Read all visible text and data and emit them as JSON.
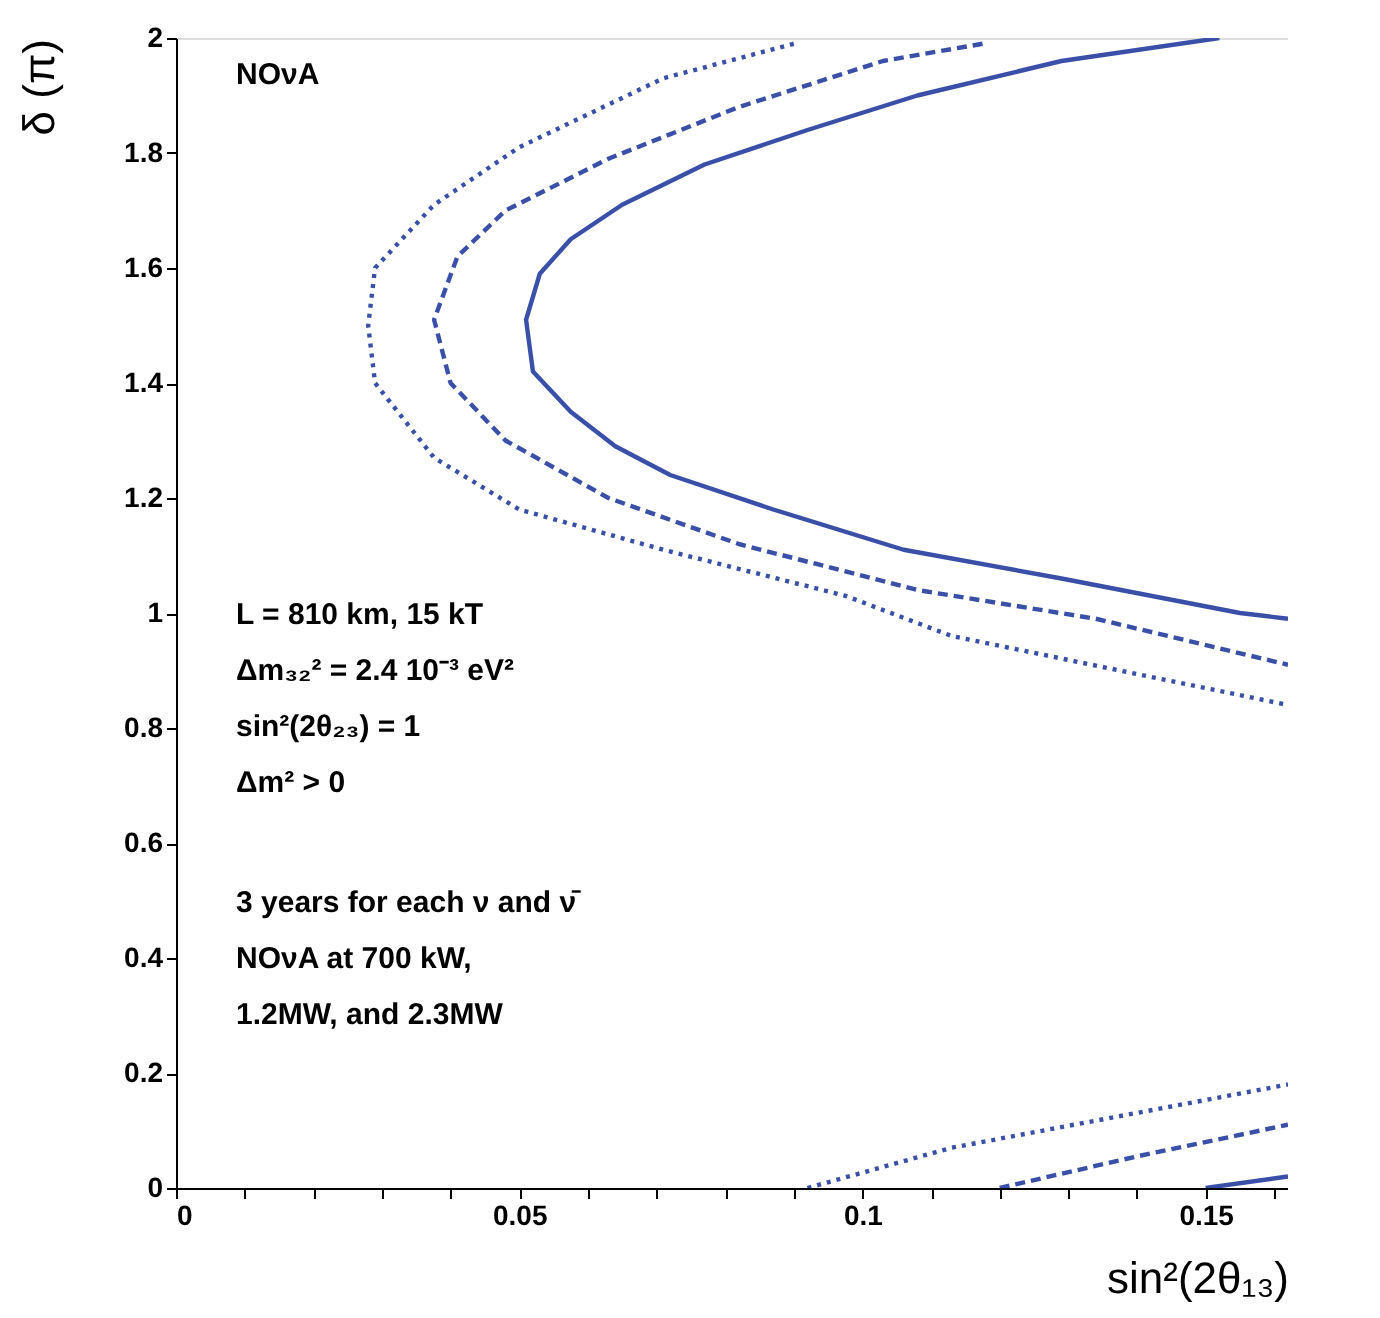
{
  "chart_data": {
    "type": "line",
    "xlabel": "sin²(2θ₁₃)",
    "ylabel": "δ (π)",
    "xlim": [
      0,
      0.162
    ],
    "ylim": [
      0,
      2
    ],
    "xticks": [
      0,
      {
        "value": 0.01,
        "label": null
      },
      {
        "value": 0.02,
        "label": null
      },
      {
        "value": 0.03,
        "label": null
      },
      {
        "value": 0.04,
        "label": null
      },
      0.05,
      {
        "value": 0.06,
        "label": null
      },
      {
        "value": 0.07,
        "label": null
      },
      {
        "value": 0.08,
        "label": null
      },
      {
        "value": 0.09,
        "label": null
      },
      0.1,
      {
        "value": 0.11,
        "label": null
      },
      {
        "value": 0.12,
        "label": null
      },
      {
        "value": 0.13,
        "label": null
      },
      {
        "value": 0.14,
        "label": null
      },
      0.15,
      {
        "value": 0.16,
        "label": null
      }
    ],
    "yticks": [
      0,
      0.2,
      0.4,
      0.6,
      0.8,
      1,
      1.2,
      1.4,
      1.6,
      1.8,
      2
    ],
    "grid": false,
    "marker": "none",
    "series": [
      {
        "color": "#3a4fa8",
        "line_style": "solid",
        "x": [
          0.152,
          0.129,
          0.108,
          0.092,
          0.077,
          0.065,
          0.0575,
          0.053,
          0.051,
          0.052,
          0.0575,
          0.064,
          0.072,
          0.087,
          0.106,
          0.129,
          0.155,
          0.162
        ],
        "values": [
          2.0,
          1.96,
          1.9,
          1.84,
          1.78,
          1.71,
          1.65,
          1.59,
          1.51,
          1.42,
          1.35,
          1.29,
          1.24,
          1.18,
          1.11,
          1.06,
          1.0,
          0.99
        ]
      },
      {
        "color": "#3a4fa8",
        "line_style": "solid",
        "x": [
          0.15,
          0.162
        ],
        "values": [
          0,
          0.02
        ]
      },
      {
        "color": "#3a4fa8",
        "line_style": "dashed",
        "x": [
          0.1175,
          0.103,
          0.082,
          0.063,
          0.048,
          0.041,
          0.0376,
          0.04,
          0.048,
          0.063,
          0.082,
          0.108,
          0.134,
          0.162
        ],
        "values": [
          1.99,
          1.96,
          1.88,
          1.79,
          1.7,
          1.62,
          1.51,
          1.4,
          1.3,
          1.2,
          1.12,
          1.04,
          0.99,
          0.91
        ]
      },
      {
        "color": "#3a4fa8",
        "line_style": "dashed",
        "x": [
          0.12,
          0.14,
          0.162
        ],
        "values": [
          0,
          0.055,
          0.11
        ]
      },
      {
        "color": "#3a4fa8",
        "line_style": "dotted",
        "x": [
          0.09,
          0.071,
          0.05,
          0.0376,
          0.029,
          0.028,
          0.029,
          0.0376,
          0.05,
          0.071,
          0.0975,
          0.113,
          0.162
        ],
        "values": [
          1.99,
          1.93,
          1.81,
          1.71,
          1.6,
          1.5,
          1.4,
          1.27,
          1.18,
          1.11,
          1.03,
          0.96,
          0.84
        ]
      },
      {
        "color": "#3a4fa8",
        "line_style": "dotted",
        "x": [
          0.092,
          0.113,
          0.162
        ],
        "values": [
          0,
          0.07,
          0.18
        ]
      }
    ],
    "annotations": [
      "NOνA",
      "L = 810 km, 15 kT",
      "Δm₃₂² = 2.4 10⁻³ eV²",
      "sin²(2θ₂₃) = 1",
      "Δm² > 0",
      "3 years for each ν and ν̄",
      "NOνA at 700 kW,",
      "1.2MW, and 2.3MW"
    ]
  }
}
